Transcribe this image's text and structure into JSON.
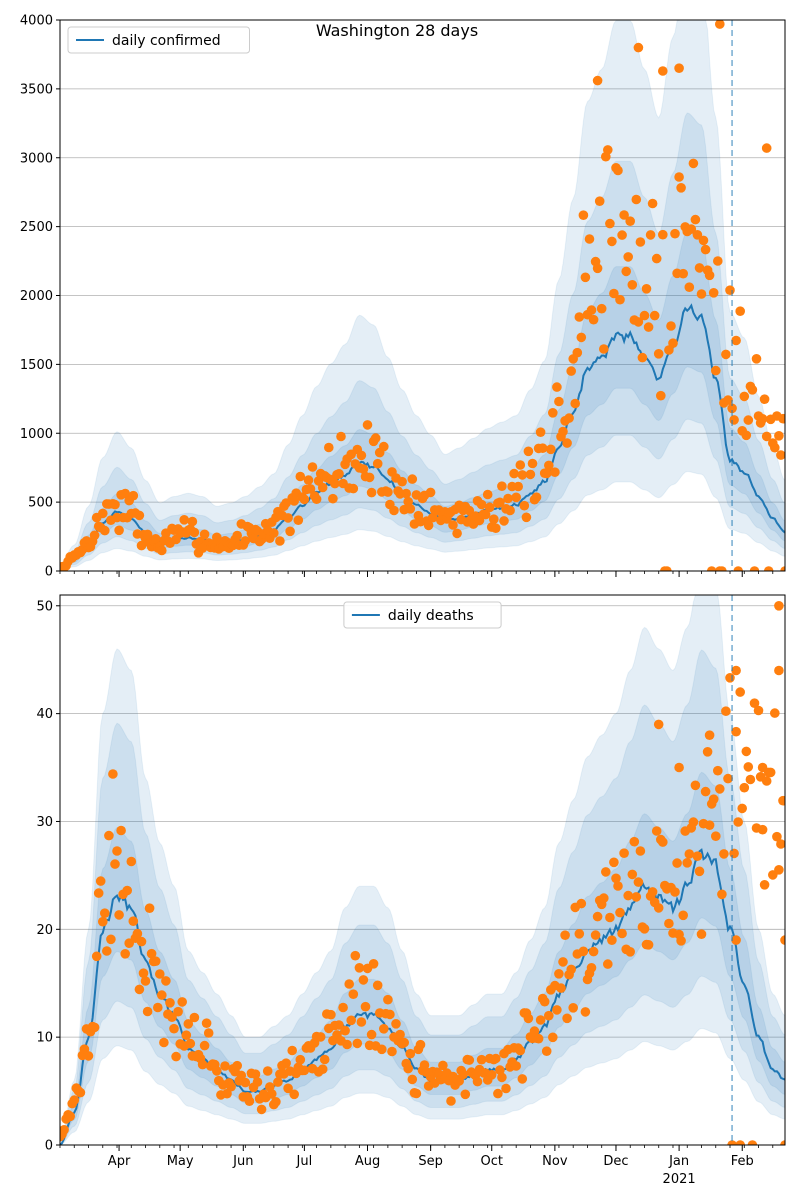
{
  "title": "Washington 28 days",
  "colors": {
    "line": "#1f77b4",
    "points": "#ff7f0e",
    "band": "#1f77b4",
    "grid": "#b0b0b0"
  },
  "chart_data": [
    {
      "type": "line",
      "panel": "top",
      "title": "Washington 28 days",
      "legend": "daily confirmed",
      "legend_position": "top-left",
      "ylim": [
        0,
        4000
      ],
      "yticks": [
        0,
        500,
        1000,
        1500,
        2000,
        2500,
        3000,
        3500,
        4000
      ],
      "grid": "horizontal",
      "x_range": [
        "2020-03-03",
        "2021-02-22"
      ],
      "vline": "2021-01-27",
      "series_knots": [
        [
          "2020-03-03",
          20
        ],
        [
          "2020-03-10",
          80
        ],
        [
          "2020-03-17",
          200
        ],
        [
          "2020-03-24",
          350
        ],
        [
          "2020-03-31",
          430
        ],
        [
          "2020-04-07",
          380
        ],
        [
          "2020-04-14",
          280
        ],
        [
          "2020-04-21",
          210
        ],
        [
          "2020-04-28",
          230
        ],
        [
          "2020-05-05",
          240
        ],
        [
          "2020-05-12",
          230
        ],
        [
          "2020-05-19",
          200
        ],
        [
          "2020-05-26",
          210
        ],
        [
          "2020-06-02",
          230
        ],
        [
          "2020-06-09",
          260
        ],
        [
          "2020-06-16",
          300
        ],
        [
          "2020-06-23",
          390
        ],
        [
          "2020-06-30",
          480
        ],
        [
          "2020-07-07",
          570
        ],
        [
          "2020-07-14",
          640
        ],
        [
          "2020-07-21",
          700
        ],
        [
          "2020-07-28",
          790
        ],
        [
          "2020-08-04",
          760
        ],
        [
          "2020-08-11",
          660
        ],
        [
          "2020-08-18",
          560
        ],
        [
          "2020-08-25",
          480
        ],
        [
          "2020-09-01",
          420
        ],
        [
          "2020-09-08",
          360
        ],
        [
          "2020-09-15",
          380
        ],
        [
          "2020-09-22",
          410
        ],
        [
          "2020-09-29",
          440
        ],
        [
          "2020-10-06",
          460
        ],
        [
          "2020-10-13",
          480
        ],
        [
          "2020-10-20",
          560
        ],
        [
          "2020-10-27",
          650
        ],
        [
          "2020-11-03",
          900
        ],
        [
          "2020-11-10",
          1150
        ],
        [
          "2020-11-17",
          1450
        ],
        [
          "2020-11-24",
          1550
        ],
        [
          "2020-12-01",
          1700
        ],
        [
          "2020-12-08",
          1700
        ],
        [
          "2020-12-15",
          1550
        ],
        [
          "2020-12-22",
          1400
        ],
        [
          "2020-12-29",
          1650
        ],
        [
          "2021-01-05",
          1900
        ],
        [
          "2021-01-12",
          1850
        ],
        [
          "2021-01-19",
          1400
        ],
        [
          "2021-01-26",
          800
        ],
        [
          "2021-02-02",
          720
        ],
        [
          "2021-02-09",
          540
        ],
        [
          "2021-02-16",
          380
        ],
        [
          "2021-02-22",
          280
        ]
      ],
      "band_scale": [
        [
          1.0,
          1.0
        ],
        [
          0.78,
          1.3
        ],
        [
          0.58,
          1.75
        ],
        [
          0.38,
          2.35
        ]
      ],
      "points_knots": [
        [
          "2020-03-03",
          20
        ],
        [
          "2020-03-10",
          100
        ],
        [
          "2020-03-17",
          210
        ],
        [
          "2020-03-24",
          380
        ],
        [
          "2020-03-31",
          470
        ],
        [
          "2020-04-07",
          420
        ],
        [
          "2020-04-14",
          240
        ],
        [
          "2020-04-21",
          190
        ],
        [
          "2020-04-28",
          250
        ],
        [
          "2020-05-05",
          280
        ],
        [
          "2020-05-12",
          220
        ],
        [
          "2020-05-19",
          200
        ],
        [
          "2020-05-26",
          200
        ],
        [
          "2020-06-02",
          270
        ],
        [
          "2020-06-09",
          280
        ],
        [
          "2020-06-16",
          320
        ],
        [
          "2020-06-23",
          420
        ],
        [
          "2020-06-30",
          520
        ],
        [
          "2020-07-07",
          620
        ],
        [
          "2020-07-14",
          700
        ],
        [
          "2020-07-21",
          760
        ],
        [
          "2020-07-28",
          830
        ],
        [
          "2020-08-04",
          760
        ],
        [
          "2020-08-11",
          680
        ],
        [
          "2020-08-18",
          560
        ],
        [
          "2020-08-25",
          500
        ],
        [
          "2020-09-01",
          430
        ],
        [
          "2020-09-08",
          390
        ],
        [
          "2020-09-15",
          420
        ],
        [
          "2020-09-22",
          420
        ],
        [
          "2020-09-29",
          480
        ],
        [
          "2020-10-06",
          500
        ],
        [
          "2020-10-13",
          540
        ],
        [
          "2020-10-20",
          640
        ],
        [
          "2020-10-27",
          740
        ],
        [
          "2020-11-03",
          1050
        ],
        [
          "2020-11-10",
          1500
        ],
        [
          "2020-11-17",
          2000
        ],
        [
          "2020-11-24",
          2400
        ],
        [
          "2020-12-01",
          2500
        ],
        [
          "2020-12-08",
          2300
        ],
        [
          "2020-12-15",
          2000
        ],
        [
          "2020-12-22",
          1900
        ],
        [
          "2020-12-29",
          2300
        ],
        [
          "2021-01-05",
          2500
        ],
        [
          "2021-01-12",
          2400
        ],
        [
          "2021-01-19",
          2000
        ],
        [
          "2021-01-26",
          1700
        ],
        [
          "2021-02-02",
          1500
        ],
        [
          "2021-02-09",
          1200
        ],
        [
          "2021-02-16",
          1000
        ],
        [
          "2021-02-22",
          900
        ]
      ],
      "points_spread": 0.32,
      "points_seed": 7,
      "points_zero_dates": [
        "2020-12-25",
        "2020-12-26",
        "2021-01-17",
        "2021-01-21",
        "2021-01-22",
        "2021-01-30",
        "2021-02-07",
        "2021-02-14",
        "2021-02-22"
      ],
      "points_extra": [
        [
          "2021-01-21",
          3970
        ],
        [
          "2021-02-13",
          3070
        ],
        [
          "2020-12-12",
          3800
        ],
        [
          "2021-01-01",
          3650
        ],
        [
          "2020-12-24",
          3630
        ],
        [
          "2020-11-22",
          3560
        ]
      ]
    },
    {
      "type": "line",
      "panel": "bottom",
      "legend": "daily deaths",
      "legend_position": "top-center",
      "ylim": [
        0,
        51
      ],
      "yticks": [
        0,
        10,
        20,
        30,
        40,
        50
      ],
      "grid": "horizontal",
      "x_range": [
        "2020-03-03",
        "2021-02-22"
      ],
      "vline": "2021-01-27",
      "series_knots": [
        [
          "2020-03-03",
          0
        ],
        [
          "2020-03-10",
          3
        ],
        [
          "2020-03-17",
          10
        ],
        [
          "2020-03-24",
          20
        ],
        [
          "2020-03-31",
          23
        ],
        [
          "2020-04-07",
          22
        ],
        [
          "2020-04-14",
          17
        ],
        [
          "2020-04-21",
          14
        ],
        [
          "2020-04-28",
          12
        ],
        [
          "2020-05-05",
          9
        ],
        [
          "2020-05-12",
          8
        ],
        [
          "2020-05-19",
          7
        ],
        [
          "2020-05-26",
          6
        ],
        [
          "2020-06-02",
          5
        ],
        [
          "2020-06-09",
          5
        ],
        [
          "2020-06-16",
          5.5
        ],
        [
          "2020-06-23",
          6
        ],
        [
          "2020-06-30",
          7
        ],
        [
          "2020-07-07",
          8
        ],
        [
          "2020-07-14",
          9
        ],
        [
          "2020-07-21",
          11
        ],
        [
          "2020-07-28",
          12
        ],
        [
          "2020-08-04",
          12
        ],
        [
          "2020-08-11",
          11
        ],
        [
          "2020-08-18",
          9
        ],
        [
          "2020-08-25",
          7
        ],
        [
          "2020-09-01",
          6
        ],
        [
          "2020-09-08",
          6
        ],
        [
          "2020-09-15",
          6
        ],
        [
          "2020-09-22",
          6.5
        ],
        [
          "2020-09-29",
          7
        ],
        [
          "2020-10-06",
          7
        ],
        [
          "2020-10-13",
          8
        ],
        [
          "2020-10-20",
          9.5
        ],
        [
          "2020-10-27",
          11
        ],
        [
          "2020-11-03",
          14
        ],
        [
          "2020-11-10",
          16
        ],
        [
          "2020-11-17",
          18
        ],
        [
          "2020-11-24",
          19
        ],
        [
          "2020-12-01",
          20
        ],
        [
          "2020-12-08",
          22
        ],
        [
          "2020-12-15",
          24
        ],
        [
          "2020-12-22",
          23
        ],
        [
          "2020-12-29",
          22
        ],
        [
          "2021-01-05",
          24
        ],
        [
          "2021-01-12",
          27
        ],
        [
          "2021-01-19",
          26
        ],
        [
          "2021-01-26",
          20
        ],
        [
          "2021-02-02",
          15
        ],
        [
          "2021-02-09",
          10
        ],
        [
          "2021-02-16",
          7
        ],
        [
          "2021-02-22",
          6
        ]
      ],
      "band_scale": [
        [
          1.0,
          1.0
        ],
        [
          0.78,
          1.28
        ],
        [
          0.58,
          1.7
        ],
        [
          0.4,
          2.0
        ]
      ],
      "points_knots": [
        [
          "2020-03-03",
          1
        ],
        [
          "2020-03-10",
          4
        ],
        [
          "2020-03-17",
          10
        ],
        [
          "2020-03-24",
          22
        ],
        [
          "2020-03-31",
          27
        ],
        [
          "2020-04-07",
          21
        ],
        [
          "2020-04-14",
          18
        ],
        [
          "2020-04-21",
          14
        ],
        [
          "2020-04-28",
          12
        ],
        [
          "2020-05-05",
          11
        ],
        [
          "2020-05-12",
          9
        ],
        [
          "2020-05-19",
          7
        ],
        [
          "2020-05-26",
          6
        ],
        [
          "2020-06-02",
          6
        ],
        [
          "2020-06-09",
          5
        ],
        [
          "2020-06-16",
          5.5
        ],
        [
          "2020-06-23",
          6.5
        ],
        [
          "2020-06-30",
          7.5
        ],
        [
          "2020-07-07",
          8.5
        ],
        [
          "2020-07-14",
          9.5
        ],
        [
          "2020-07-21",
          12
        ],
        [
          "2020-07-28",
          14
        ],
        [
          "2020-08-04",
          13
        ],
        [
          "2020-08-11",
          11
        ],
        [
          "2020-08-18",
          8
        ],
        [
          "2020-08-25",
          7
        ],
        [
          "2020-09-01",
          6
        ],
        [
          "2020-09-08",
          6
        ],
        [
          "2020-09-15",
          6
        ],
        [
          "2020-09-22",
          7
        ],
        [
          "2020-09-29",
          7
        ],
        [
          "2020-10-06",
          7.5
        ],
        [
          "2020-10-13",
          8.5
        ],
        [
          "2020-10-20",
          10
        ],
        [
          "2020-10-27",
          12
        ],
        [
          "2020-11-03",
          15
        ],
        [
          "2020-11-10",
          17
        ],
        [
          "2020-11-17",
          19
        ],
        [
          "2020-11-24",
          21
        ],
        [
          "2020-12-01",
          23
        ],
        [
          "2020-12-08",
          25
        ],
        [
          "2020-12-15",
          24
        ],
        [
          "2020-12-22",
          22
        ],
        [
          "2020-12-29",
          22
        ],
        [
          "2021-01-05",
          26
        ],
        [
          "2021-01-12",
          30
        ],
        [
          "2021-01-19",
          30
        ],
        [
          "2021-01-26",
          32
        ],
        [
          "2021-02-02",
          34
        ],
        [
          "2021-02-09",
          30
        ],
        [
          "2021-02-16",
          33
        ],
        [
          "2021-02-22",
          30
        ]
      ],
      "points_spread": 0.28,
      "points_seed": 21,
      "points_zero_dates": [
        "2021-01-27",
        "2021-01-31",
        "2021-02-06",
        "2021-02-22"
      ],
      "points_extra": [
        [
          "2021-02-19",
          50
        ],
        [
          "2021-02-19",
          44
        ],
        [
          "2021-01-29",
          44
        ],
        [
          "2021-01-31",
          42
        ],
        [
          "2020-12-22",
          39
        ],
        [
          "2021-01-16",
          38
        ],
        [
          "2021-02-11",
          35
        ],
        [
          "2021-01-01",
          35
        ],
        [
          "2021-02-22",
          19
        ],
        [
          "2021-01-29",
          19
        ]
      ]
    }
  ],
  "x_axis": {
    "month_ticks": [
      {
        "date": "2020-04-01",
        "label": "Apr"
      },
      {
        "date": "2020-05-01",
        "label": "May"
      },
      {
        "date": "2020-06-01",
        "label": "Jun"
      },
      {
        "date": "2020-07-01",
        "label": "Jul"
      },
      {
        "date": "2020-08-01",
        "label": "Aug"
      },
      {
        "date": "2020-09-01",
        "label": "Sep"
      },
      {
        "date": "2020-10-01",
        "label": "Oct"
      },
      {
        "date": "2020-11-01",
        "label": "Nov"
      },
      {
        "date": "2020-12-01",
        "label": "Dec"
      },
      {
        "date": "2021-01-01",
        "label": "Jan"
      },
      {
        "date": "2021-02-01",
        "label": "Feb"
      }
    ],
    "year_label": {
      "date": "2021-01-01",
      "label": "2021"
    }
  }
}
